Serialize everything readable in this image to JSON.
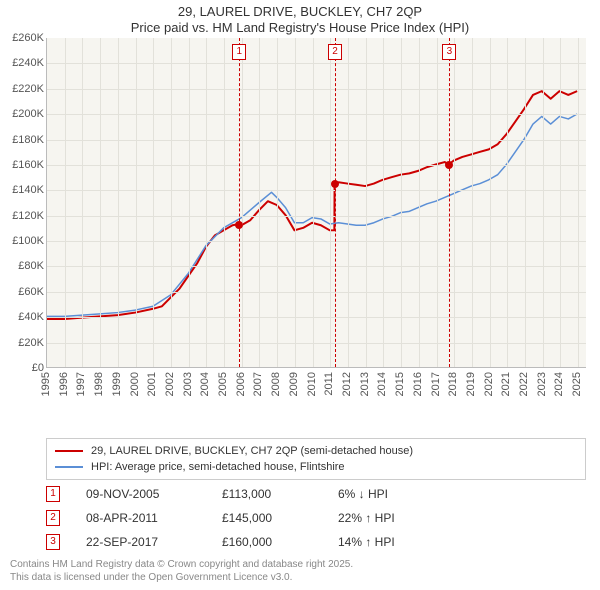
{
  "title_line1": "29, LAUREL DRIVE, BUCKLEY, CH7 2QP",
  "title_line2": "Price paid vs. HM Land Registry's House Price Index (HPI)",
  "chart": {
    "type": "line",
    "background_color": "#f6f5f0",
    "grid_color": "#e2e1da",
    "axis_color": "#bbbbbb",
    "x": {
      "min": 1995,
      "max": 2025.5,
      "tick_step": 1,
      "labels": [
        "1995",
        "1996",
        "1997",
        "1998",
        "1999",
        "2000",
        "2001",
        "2002",
        "2003",
        "2004",
        "2005",
        "2006",
        "2007",
        "2008",
        "2009",
        "2010",
        "2011",
        "2012",
        "2013",
        "2014",
        "2015",
        "2016",
        "2017",
        "2018",
        "2019",
        "2020",
        "2021",
        "2022",
        "2023",
        "2024",
        "2025"
      ]
    },
    "y": {
      "min": 0,
      "max": 260000,
      "tick_step": 20000,
      "labels": [
        "£0",
        "£20K",
        "£40K",
        "£60K",
        "£80K",
        "£100K",
        "£120K",
        "£140K",
        "£160K",
        "£180K",
        "£200K",
        "£220K",
        "£240K",
        "£260K"
      ]
    },
    "series": [
      {
        "name": "29, LAUREL DRIVE, BUCKLEY, CH7 2QP (semi-detached house)",
        "color": "#cc0000",
        "width": 2,
        "data": [
          [
            1995.0,
            38000
          ],
          [
            1996.0,
            38000
          ],
          [
            1997.0,
            39000
          ],
          [
            1998.0,
            40000
          ],
          [
            1999.0,
            41000
          ],
          [
            2000.0,
            43000
          ],
          [
            2001.0,
            46000
          ],
          [
            2001.5,
            48000
          ],
          [
            2002.0,
            55000
          ],
          [
            2002.5,
            62000
          ],
          [
            2003.0,
            72000
          ],
          [
            2003.5,
            82000
          ],
          [
            2004.0,
            95000
          ],
          [
            2004.5,
            104000
          ],
          [
            2005.0,
            108000
          ],
          [
            2005.5,
            112000
          ],
          [
            2005.86,
            113000
          ],
          [
            2006.0,
            112000
          ],
          [
            2006.5,
            116000
          ],
          [
            2007.0,
            124000
          ],
          [
            2007.5,
            131000
          ],
          [
            2008.0,
            128000
          ],
          [
            2008.5,
            120000
          ],
          [
            2009.0,
            108000
          ],
          [
            2009.5,
            110000
          ],
          [
            2010.0,
            114000
          ],
          [
            2010.5,
            112000
          ],
          [
            2011.0,
            108000
          ],
          [
            2011.26,
            108000
          ],
          [
            2011.27,
            145000
          ],
          [
            2011.5,
            146000
          ],
          [
            2012.0,
            145000
          ],
          [
            2012.5,
            144000
          ],
          [
            2013.0,
            143000
          ],
          [
            2013.5,
            145000
          ],
          [
            2014.0,
            148000
          ],
          [
            2014.5,
            150000
          ],
          [
            2015.0,
            152000
          ],
          [
            2015.5,
            153000
          ],
          [
            2016.0,
            155000
          ],
          [
            2016.5,
            158000
          ],
          [
            2017.0,
            160000
          ],
          [
            2017.5,
            162000
          ],
          [
            2017.73,
            160000
          ],
          [
            2018.0,
            163000
          ],
          [
            2018.5,
            166000
          ],
          [
            2019.0,
            168000
          ],
          [
            2019.5,
            170000
          ],
          [
            2020.0,
            172000
          ],
          [
            2020.5,
            176000
          ],
          [
            2021.0,
            184000
          ],
          [
            2021.5,
            194000
          ],
          [
            2022.0,
            204000
          ],
          [
            2022.5,
            215000
          ],
          [
            2023.0,
            218000
          ],
          [
            2023.5,
            212000
          ],
          [
            2024.0,
            218000
          ],
          [
            2024.5,
            215000
          ],
          [
            2025.0,
            218000
          ]
        ]
      },
      {
        "name": "HPI: Average price, semi-detached house, Flintshire",
        "color": "#5b8fd6",
        "width": 1.5,
        "data": [
          [
            1995.0,
            40000
          ],
          [
            1996.0,
            40000
          ],
          [
            1997.0,
            41000
          ],
          [
            1998.0,
            42000
          ],
          [
            1999.0,
            43000
          ],
          [
            2000.0,
            45000
          ],
          [
            2001.0,
            48000
          ],
          [
            2002.0,
            57000
          ],
          [
            2003.0,
            74000
          ],
          [
            2004.0,
            96000
          ],
          [
            2005.0,
            110000
          ],
          [
            2006.0,
            118000
          ],
          [
            2007.0,
            130000
          ],
          [
            2007.7,
            138000
          ],
          [
            2008.0,
            134000
          ],
          [
            2008.5,
            126000
          ],
          [
            2009.0,
            114000
          ],
          [
            2009.5,
            114000
          ],
          [
            2010.0,
            118000
          ],
          [
            2010.5,
            117000
          ],
          [
            2011.0,
            113000
          ],
          [
            2011.5,
            114000
          ],
          [
            2012.0,
            113000
          ],
          [
            2012.5,
            112000
          ],
          [
            2013.0,
            112000
          ],
          [
            2013.5,
            114000
          ],
          [
            2014.0,
            117000
          ],
          [
            2014.5,
            119000
          ],
          [
            2015.0,
            122000
          ],
          [
            2015.5,
            123000
          ],
          [
            2016.0,
            126000
          ],
          [
            2016.5,
            129000
          ],
          [
            2017.0,
            131000
          ],
          [
            2017.5,
            134000
          ],
          [
            2018.0,
            137000
          ],
          [
            2018.5,
            140000
          ],
          [
            2019.0,
            143000
          ],
          [
            2019.5,
            145000
          ],
          [
            2020.0,
            148000
          ],
          [
            2020.5,
            152000
          ],
          [
            2021.0,
            160000
          ],
          [
            2021.5,
            170000
          ],
          [
            2022.0,
            180000
          ],
          [
            2022.5,
            192000
          ],
          [
            2023.0,
            198000
          ],
          [
            2023.5,
            192000
          ],
          [
            2024.0,
            198000
          ],
          [
            2024.5,
            196000
          ],
          [
            2025.0,
            200000
          ]
        ]
      }
    ],
    "markers": [
      {
        "id": "1",
        "x": 2005.86,
        "y": 113000,
        "color": "#cc0000"
      },
      {
        "id": "2",
        "x": 2011.27,
        "y": 145000,
        "color": "#cc0000"
      },
      {
        "id": "3",
        "x": 2017.73,
        "y": 160000,
        "color": "#cc0000"
      }
    ]
  },
  "legend": {
    "items": [
      {
        "label": "29, LAUREL DRIVE, BUCKLEY, CH7 2QP (semi-detached house)",
        "color": "#cc0000"
      },
      {
        "label": "HPI: Average price, semi-detached house, Flintshire",
        "color": "#5b8fd6"
      }
    ]
  },
  "sales": [
    {
      "id": "1",
      "date": "09-NOV-2005",
      "price": "£113,000",
      "pct": "6% ↓ HPI",
      "color": "#cc0000"
    },
    {
      "id": "2",
      "date": "08-APR-2011",
      "price": "£145,000",
      "pct": "22% ↑ HPI",
      "color": "#cc0000"
    },
    {
      "id": "3",
      "date": "22-SEP-2017",
      "price": "£160,000",
      "pct": "14% ↑ HPI",
      "color": "#cc0000"
    }
  ],
  "footer_line1": "Contains HM Land Registry data © Crown copyright and database right 2025.",
  "footer_line2": "This data is licensed under the Open Government Licence v3.0."
}
